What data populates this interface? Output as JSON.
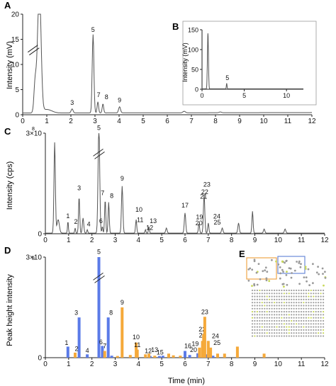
{
  "colors": {
    "trace": "#555555",
    "axis": "#222222",
    "blue": "#5b7be8",
    "orange": "#f5a93a",
    "box_orange": "#f0a64a",
    "box_blue": "#6a8ad8"
  },
  "chart_data": [
    {
      "panel": "A",
      "type": "line",
      "ylabel": "Intensity (mV)",
      "xlim": [
        0,
        12
      ],
      "ylim": [
        0,
        20
      ],
      "xticks": [
        0,
        1,
        2,
        3,
        4,
        5,
        6,
        7,
        8,
        9,
        10,
        11,
        12
      ],
      "yticks": [
        0,
        5,
        10,
        15,
        20
      ],
      "axis_break": "y",
      "peaks": [
        {
          "label": "",
          "x": 0.52,
          "y": 6.5
        },
        {
          "label": "",
          "x": 0.68,
          "y": 20
        },
        {
          "label": "3",
          "x": 2.05,
          "y": 1.0
        },
        {
          "label": "5",
          "x": 2.92,
          "y": 15.9
        },
        {
          "label": "7",
          "x": 3.12,
          "y": 2.5
        },
        {
          "label": "8",
          "x": 3.33,
          "y": 2.1
        },
        {
          "label": "9",
          "x": 4.02,
          "y": 1.5
        }
      ]
    },
    {
      "panel": "B",
      "type": "line",
      "inset": true,
      "ylabel": "Intensity (mV)",
      "xlim": [
        0,
        12
      ],
      "ylim": [
        0,
        150
      ],
      "xticks": [
        0,
        5,
        10
      ],
      "yticks": [
        0,
        50,
        100,
        150
      ],
      "peaks": [
        {
          "label": "",
          "x": 0.68,
          "y": 145
        },
        {
          "label": "5",
          "x": 2.92,
          "y": 16
        }
      ]
    },
    {
      "panel": "C",
      "type": "line",
      "ylabel": "Intensity (cps)",
      "xlim": [
        0,
        12
      ],
      "ylim": [
        0,
        3
      ],
      "y_unit_power": 8,
      "xticks": [
        0,
        1,
        2,
        3,
        4,
        5,
        6,
        7,
        8,
        9,
        10,
        11,
        12
      ],
      "yticks": [
        0,
        3
      ],
      "ytick_labels": [
        "0",
        "3×10"
      ],
      "axis_break": "x≈2.3",
      "peaks": [
        {
          "label": "",
          "x": 0.4,
          "y": 2.7
        },
        {
          "label": "1",
          "x": 0.97,
          "y": 0.35
        },
        {
          "label": "2",
          "x": 1.28,
          "y": 0.18
        },
        {
          "label": "3",
          "x": 1.45,
          "y": 1.1
        },
        {
          "label": "4",
          "x": 1.8,
          "y": 0.1
        },
        {
          "label": "5",
          "x": 2.3,
          "y": 3.0
        },
        {
          "label": "6",
          "x": 2.45,
          "y": 0.2
        },
        {
          "label": "7",
          "x": 2.55,
          "y": 1.0
        },
        {
          "label": "8",
          "x": 2.7,
          "y": 0.92
        },
        {
          "label": "9",
          "x": 3.3,
          "y": 1.4
        },
        {
          "label": "10",
          "x": 3.9,
          "y": 0.45
        },
        {
          "label": "11",
          "x": 3.95,
          "y": 0.2
        },
        {
          "label": "12",
          "x": 4.3,
          "y": 0.08
        },
        {
          "label": "13",
          "x": 4.45,
          "y": 0.2
        },
        {
          "label": "17",
          "x": 6.0,
          "y": 0.6
        },
        {
          "label": "19",
          "x": 6.62,
          "y": 0.28
        },
        {
          "label": "20",
          "x": 6.6,
          "y": 0.15
        },
        {
          "label": "21",
          "x": 6.8,
          "y": 0.85
        },
        {
          "label": "22",
          "x": 6.82,
          "y": 1.0
        },
        {
          "label": "23",
          "x": 6.85,
          "y": 1.25
        },
        {
          "label": "24",
          "x": 7.0,
          "y": 0.3
        },
        {
          "label": "25",
          "x": 7.05,
          "y": 0.15
        }
      ]
    },
    {
      "panel": "D",
      "type": "bar",
      "xlabel": "Time (min)",
      "ylabel": "Peak height intensity",
      "xlim": [
        0,
        12
      ],
      "ylim": [
        0,
        3
      ],
      "y_unit_power": 8,
      "xticks": [
        0,
        1,
        2,
        3,
        4,
        5,
        6,
        7,
        8,
        9,
        10,
        11,
        12
      ],
      "yticks": [
        0,
        3
      ],
      "ytick_labels": [
        "0",
        "3×10"
      ],
      "axis_break": "x≈2.3",
      "series": [
        {
          "color": "blue",
          "bars": [
            {
              "label": "1",
              "x": 0.97,
              "y": 0.33
            },
            {
              "label": "3",
              "x": 1.45,
              "y": 1.2
            },
            {
              "label": "4",
              "x": 1.8,
              "y": 0.1
            },
            {
              "label": "5",
              "x": 2.3,
              "y": 3.0
            },
            {
              "label": "6",
              "x": 2.45,
              "y": 0.35
            },
            {
              "label": "8",
              "x": 2.7,
              "y": 1.2
            },
            {
              "label": "16",
              "x": 6.0,
              "y": 0.2
            },
            {
              "label": "20",
              "x": 6.55,
              "y": 0.13
            },
            {
              "label": "15",
              "x": 5.05,
              "y": 0.06
            },
            {
              "label": "",
              "x": 2.85,
              "y": 0.06
            },
            {
              "label": "",
              "x": 4.5,
              "y": 0.05
            },
            {
              "label": "",
              "x": 4.9,
              "y": 0.05
            },
            {
              "label": "",
              "x": 6.2,
              "y": 0.08
            },
            {
              "label": "",
              "x": 6.9,
              "y": 0.1
            },
            {
              "label": "",
              "x": 7.2,
              "y": 0.06
            }
          ]
        },
        {
          "color": "orange",
          "bars": [
            {
              "label": "2",
              "x": 1.28,
              "y": 0.15
            },
            {
              "label": "7",
              "x": 2.55,
              "y": 0.2
            },
            {
              "label": "9",
              "x": 3.3,
              "y": 1.5
            },
            {
              "label": "10",
              "x": 3.9,
              "y": 0.45
            },
            {
              "label": "11",
              "x": 3.95,
              "y": 0.24
            },
            {
              "label": "12",
              "x": 4.3,
              "y": 0.1
            },
            {
              "label": "13",
              "x": 4.45,
              "y": 0.12
            },
            {
              "label": "19",
              "x": 6.62,
              "y": 0.3
            },
            {
              "label": "21",
              "x": 6.75,
              "y": 0.5
            },
            {
              "label": "22",
              "x": 6.8,
              "y": 0.7
            },
            {
              "label": "23",
              "x": 6.85,
              "y": 1.22
            },
            {
              "label": "24",
              "x": 7.0,
              "y": 0.5
            },
            {
              "label": "25",
              "x": 7.1,
              "y": 0.3
            },
            {
              "label": "",
              "x": 3.1,
              "y": 0.05
            },
            {
              "label": "",
              "x": 3.65,
              "y": 0.08
            },
            {
              "label": "",
              "x": 4.7,
              "y": 0.06
            },
            {
              "label": "",
              "x": 5.3,
              "y": 0.12
            },
            {
              "label": "",
              "x": 5.5,
              "y": 0.07
            },
            {
              "label": "",
              "x": 5.8,
              "y": 0.06
            },
            {
              "label": "",
              "x": 7.4,
              "y": 0.12
            },
            {
              "label": "",
              "x": 7.7,
              "y": 0.12
            },
            {
              "label": "",
              "x": 8.25,
              "y": 0.33
            },
            {
              "label": "",
              "x": 9.4,
              "y": 0.12
            }
          ]
        }
      ]
    }
  ],
  "panels": {
    "a_letter": "A",
    "b_letter": "B",
    "c_letter": "C",
    "d_letter": "D",
    "e_letter": "E",
    "a_ylabel": "Intensity (mV)",
    "b_ylabel": "Intensity (mV)",
    "c_ylabel": "Intensity (cps)",
    "d_ylabel": "Peak height intensity",
    "d_xlabel": "Time (min)",
    "exp": "8"
  }
}
